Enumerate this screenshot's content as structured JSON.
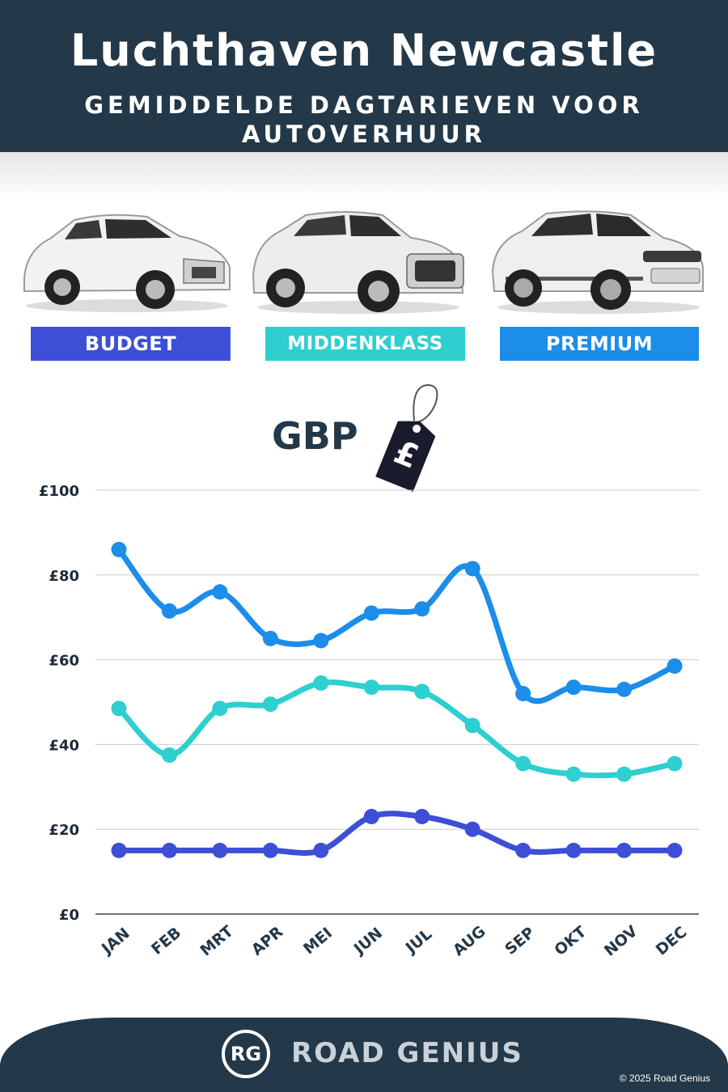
{
  "header": {
    "title": "Luchthaven Newcastle",
    "subtitle": "GEMIDDELDE DAGTARIEVEN VOOR AUTOVERHUUR"
  },
  "categories": [
    {
      "label": "BUDGET",
      "color": "#3d4fd6"
    },
    {
      "label": "MIDDENKLASS",
      "color": "#2ecfcf"
    },
    {
      "label": "PREMIUM",
      "color": "#1c8de8"
    }
  ],
  "currency_label": "GBP",
  "price_tag_symbol": "£",
  "chart_data": {
    "type": "line",
    "categories": [
      "JAN",
      "FEB",
      "MRT",
      "APR",
      "MEI",
      "JUN",
      "JUL",
      "AUG",
      "SEP",
      "OKT",
      "NOV",
      "DEC"
    ],
    "series": [
      {
        "name": "PREMIUM",
        "color": "#1c8de8",
        "values": [
          86,
          71.5,
          76,
          65,
          64.5,
          71,
          72,
          81.5,
          52,
          53.5,
          53,
          58.5
        ]
      },
      {
        "name": "MIDDENKLASS",
        "color": "#2ecfcf",
        "values": [
          48.5,
          37.5,
          48.5,
          49.5,
          54.5,
          53.5,
          52.5,
          44.5,
          35.5,
          33,
          33,
          35.5
        ]
      },
      {
        "name": "BUDGET",
        "color": "#3d4fd6",
        "values": [
          15,
          15,
          15,
          15,
          15,
          23,
          23,
          20,
          15,
          15,
          15,
          15
        ]
      }
    ],
    "ylim": [
      0,
      100
    ],
    "yticks": [
      0,
      20,
      40,
      60,
      80,
      100
    ],
    "ytick_labels": [
      "£0",
      "£20",
      "£40",
      "£60",
      "£80",
      "£100"
    ],
    "grid": true,
    "xlabel": "",
    "ylabel": ""
  },
  "footer": {
    "logo_initials": "RG",
    "brand": "ROAD GENIUS",
    "copyright": "© 2025 Road Genius"
  }
}
